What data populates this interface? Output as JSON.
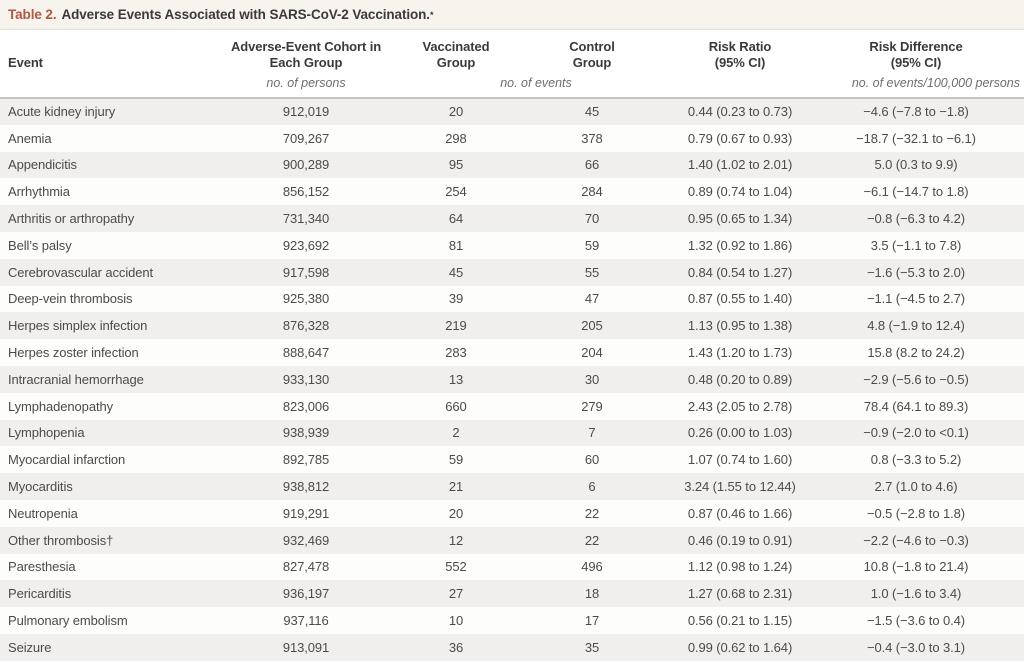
{
  "title": {
    "label": "Table 2.",
    "text": "Adverse Events Associated with SARS-CoV-2 Vaccination.",
    "footnote_symbol": "*"
  },
  "colors": {
    "accent_red": "#b5563e",
    "title_bar_bg": "#f7f4ee",
    "row_band_gray": "#f0efed",
    "header_rule": "#c2c2c0"
  },
  "table": {
    "columns": {
      "event": "Event",
      "cohort_line1": "Adverse-Event Cohort in",
      "cohort_line2": "Each Group",
      "vaccinated_line1": "Vaccinated",
      "vaccinated_line2": "Group",
      "control_line1": "Control",
      "control_line2": "Group",
      "risk_ratio_line1": "Risk Ratio",
      "risk_ratio_line2": "(95% CI)",
      "risk_diff_line1": "Risk Difference",
      "risk_diff_line2": "(95% CI)"
    },
    "subheaders": {
      "cohort": "no. of persons",
      "events": "no. of events",
      "risk_diff": "no. of events/100,000 persons"
    },
    "rows": [
      {
        "event": "Acute kidney injury",
        "cohort": "912,019",
        "vaccinated": "20",
        "control": "45",
        "risk_ratio": "0.44 (0.23 to 0.73)",
        "risk_diff": "−4.6 (−7.8 to −1.8)"
      },
      {
        "event": "Anemia",
        "cohort": "709,267",
        "vaccinated": "298",
        "control": "378",
        "risk_ratio": "0.79 (0.67 to 0.93)",
        "risk_diff": "−18.7 (−32.1 to −6.1)"
      },
      {
        "event": "Appendicitis",
        "cohort": "900,289",
        "vaccinated": "95",
        "control": "66",
        "risk_ratio": "1.40 (1.02 to 2.01)",
        "risk_diff": "5.0 (0.3 to 9.9)"
      },
      {
        "event": "Arrhythmia",
        "cohort": "856,152",
        "vaccinated": "254",
        "control": "284",
        "risk_ratio": "0.89 (0.74 to 1.04)",
        "risk_diff": "−6.1 (−14.7 to 1.8)"
      },
      {
        "event": "Arthritis or arthropathy",
        "cohort": "731,340",
        "vaccinated": "64",
        "control": "70",
        "risk_ratio": "0.95 (0.65 to 1.34)",
        "risk_diff": "−0.8 (−6.3 to 4.2)"
      },
      {
        "event": "Bell’s palsy",
        "cohort": "923,692",
        "vaccinated": "81",
        "control": "59",
        "risk_ratio": "1.32 (0.92 to 1.86)",
        "risk_diff": "3.5 (−1.1 to 7.8)"
      },
      {
        "event": "Cerebrovascular accident",
        "cohort": "917,598",
        "vaccinated": "45",
        "control": "55",
        "risk_ratio": "0.84 (0.54 to 1.27)",
        "risk_diff": "−1.6 (−5.3 to 2.0)"
      },
      {
        "event": "Deep-vein thrombosis",
        "cohort": "925,380",
        "vaccinated": "39",
        "control": "47",
        "risk_ratio": "0.87 (0.55 to 1.40)",
        "risk_diff": "−1.1 (−4.5 to 2.7)"
      },
      {
        "event": "Herpes simplex infection",
        "cohort": "876,328",
        "vaccinated": "219",
        "control": "205",
        "risk_ratio": "1.13 (0.95 to 1.38)",
        "risk_diff": "4.8 (−1.9 to 12.4)"
      },
      {
        "event": "Herpes zoster infection",
        "cohort": "888,647",
        "vaccinated": "283",
        "control": "204",
        "risk_ratio": "1.43 (1.20 to 1.73)",
        "risk_diff": "15.8 (8.2 to 24.2)"
      },
      {
        "event": "Intracranial hemorrhage",
        "cohort": "933,130",
        "vaccinated": "13",
        "control": "30",
        "risk_ratio": "0.48 (0.20 to 0.89)",
        "risk_diff": "−2.9 (−5.6 to −0.5)"
      },
      {
        "event": "Lymphadenopathy",
        "cohort": "823,006",
        "vaccinated": "660",
        "control": "279",
        "risk_ratio": "2.43 (2.05 to 2.78)",
        "risk_diff": "78.4 (64.1 to 89.3)"
      },
      {
        "event": "Lymphopenia",
        "cohort": "938,939",
        "vaccinated": "2",
        "control": "7",
        "risk_ratio": "0.26 (0.00 to 1.03)",
        "risk_diff": "−0.9 (−2.0 to <0.1)"
      },
      {
        "event": "Myocardial infarction",
        "cohort": "892,785",
        "vaccinated": "59",
        "control": "60",
        "risk_ratio": "1.07 (0.74 to 1.60)",
        "risk_diff": "0.8 (−3.3 to 5.2)"
      },
      {
        "event": "Myocarditis",
        "cohort": "938,812",
        "vaccinated": "21",
        "control": "6",
        "risk_ratio": "3.24 (1.55 to 12.44)",
        "risk_diff": "2.7 (1.0 to 4.6)"
      },
      {
        "event": "Neutropenia",
        "cohort": "919,291",
        "vaccinated": "20",
        "control": "22",
        "risk_ratio": "0.87 (0.46 to 1.66)",
        "risk_diff": "−0.5 (−2.8 to 1.8)"
      },
      {
        "event": "Other thrombosis†",
        "cohort": "932,469",
        "vaccinated": "12",
        "control": "22",
        "risk_ratio": "0.46 (0.19 to 0.91)",
        "risk_diff": "−2.2 (−4.6 to −0.3)"
      },
      {
        "event": "Paresthesia",
        "cohort": "827,478",
        "vaccinated": "552",
        "control": "496",
        "risk_ratio": "1.12 (0.98 to 1.24)",
        "risk_diff": "10.8 (−1.8 to 21.4)"
      },
      {
        "event": "Pericarditis",
        "cohort": "936,197",
        "vaccinated": "27",
        "control": "18",
        "risk_ratio": "1.27 (0.68 to 2.31)",
        "risk_diff": "1.0 (−1.6 to 3.4)"
      },
      {
        "event": "Pulmonary embolism",
        "cohort": "937,116",
        "vaccinated": "10",
        "control": "17",
        "risk_ratio": "0.56 (0.21 to 1.15)",
        "risk_diff": "−1.5 (−3.6 to 0.4)"
      },
      {
        "event": "Seizure",
        "cohort": "913,091",
        "vaccinated": "36",
        "control": "35",
        "risk_ratio": "0.99 (0.62 to 1.64)",
        "risk_diff": "−0.4 (−3.0 to 3.1)"
      }
    ]
  }
}
